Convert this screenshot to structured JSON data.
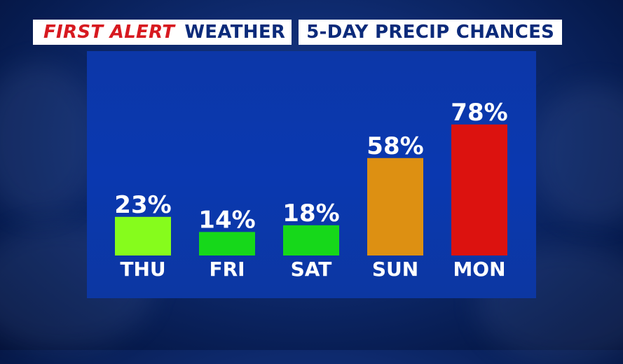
{
  "header": {
    "brand_first_alert": "FIRST ALERT",
    "brand_weather": "WEATHER",
    "title": "5-DAY PRECIP CHANCES"
  },
  "chart_data": {
    "type": "bar",
    "categories": [
      "THU",
      "FRI",
      "SAT",
      "SUN",
      "MON"
    ],
    "values": [
      23,
      14,
      18,
      58,
      78
    ],
    "value_labels": [
      "23%",
      "14%",
      "18%",
      "58%",
      "78%"
    ],
    "colors": [
      "#86fc1c",
      "#16d81a",
      "#16d81a",
      "#dd9012",
      "#dc120f"
    ],
    "ylim": [
      0,
      100
    ],
    "grid": false,
    "legend": "none"
  },
  "colors": {
    "brand_red": "#d71920",
    "brand_blue": "#0b2a7a",
    "panel_blue": "#0a38b0"
  }
}
